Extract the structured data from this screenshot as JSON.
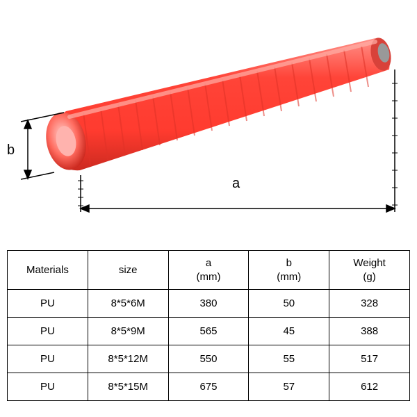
{
  "diagram": {
    "label_a": "a",
    "label_b": "b",
    "hose_color": "#ff3b2f",
    "hose_highlight": "#ff6b5f",
    "hose_shadow": "#cc2a20",
    "hose_core": "#ffb3ae",
    "ruler_color": "#000000",
    "background": "#ffffff"
  },
  "table": {
    "columns": [
      "Materials",
      "size",
      "a\n(mm)",
      "b\n(mm)",
      "Weight\n(g)"
    ],
    "rows": [
      [
        "PU",
        "8*5*6M",
        "380",
        "50",
        "328"
      ],
      [
        "PU",
        "8*5*9M",
        "565",
        "45",
        "388"
      ],
      [
        "PU",
        "8*5*12M",
        "550",
        "55",
        "517"
      ],
      [
        "PU",
        "8*5*15M",
        "675",
        "57",
        "612"
      ]
    ],
    "col_widths": [
      "20%",
      "20%",
      "20%",
      "20%",
      "20%"
    ],
    "font_size": 15,
    "border_color": "#000000"
  }
}
